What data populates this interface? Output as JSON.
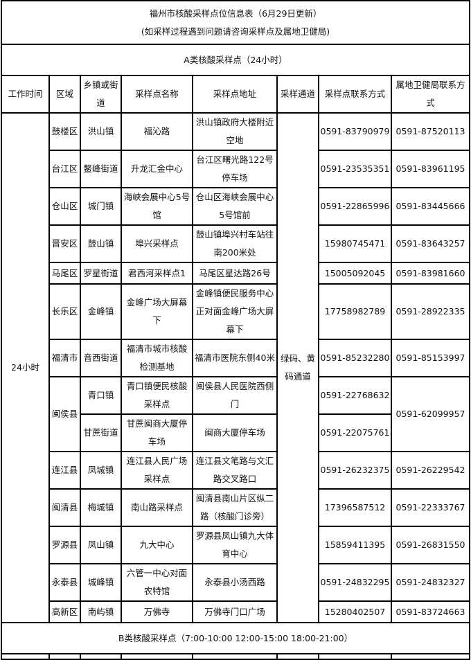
{
  "title": "福州市核酸采样点位信息表（6月29日更新）",
  "subtitle": "(如采样过程遇到问题请咨询采样点及属地卫健局)",
  "section_a": "A类核酸采样点（24小时）",
  "section_b": "B类核酸采样点（7:00-10:00 12:00-15:00 18:00-21:00）",
  "headers": [
    "工作时间",
    "区域",
    "乡镇或街道",
    "采样点名称",
    "采样点地址",
    "采样通道",
    "采样点联系方式",
    "属地卫健局联系方式"
  ],
  "work_time": "24小时",
  "channel": "绿码、黄码通道",
  "districts": [
    {
      "district": "鼓楼区",
      "bureau_phone": "0591-87520113",
      "sites": [
        {
          "town": "洪山镇",
          "name": "福沁路",
          "address": "洪山镇政府大楼附近空地",
          "phone": "0591-83790979"
        }
      ]
    },
    {
      "district": "台江区",
      "bureau_phone": "0591-83961195",
      "sites": [
        {
          "town": "鳌峰街道",
          "name": "升龙汇金中心",
          "address": "台江区曙光路122号停车场",
          "phone": "0591-23535351"
        }
      ]
    },
    {
      "district": "仓山区",
      "bureau_phone": "0591-83445666",
      "sites": [
        {
          "town": "城门镇",
          "name": "海峡会展中心5号馆",
          "address": "仓山区海峡会展中心5号馆前",
          "phone": "0591-22865996"
        }
      ]
    },
    {
      "district": "晋安区",
      "bureau_phone": "0591-83643257",
      "sites": [
        {
          "town": "鼓山镇",
          "name": "埠兴采样点",
          "address": "鼓山镇埠兴村车站往南200米处",
          "phone": "15980745471"
        }
      ]
    },
    {
      "district": "马尾区",
      "bureau_phone": "0591-83981660",
      "sites": [
        {
          "town": "罗星街道",
          "name": "君西河采样点1",
          "address": "马尾区星达路26号",
          "phone": "15005092045"
        }
      ]
    },
    {
      "district": "长乐区",
      "bureau_phone": "0591-28922335",
      "sites": [
        {
          "town": "金峰镇",
          "name": "金峰广场大屏幕下",
          "address": "金峰镇便民服务中心正对面金峰广场大屏幕下",
          "phone": "17758982789"
        }
      ]
    },
    {
      "district": "福清市",
      "bureau_phone": "0591-85153997",
      "sites": [
        {
          "town": "音西街道",
          "name": "福清市城市核酸检测基地",
          "address": "福清市医院东侧40米",
          "phone": "0591-85232280"
        }
      ]
    },
    {
      "district": "闽侯县",
      "bureau_phone": "0591-62099957",
      "sites": [
        {
          "town": "青口镇",
          "name": "青口镇便民核酸采样点",
          "address": "闽侯县人民医院西侧门",
          "phone": "0591-22768632"
        },
        {
          "town": "甘蔗街道",
          "name": "甘蔗闽商大厦停车场",
          "address": "闽商大厦停车场",
          "phone": "0591-22075761"
        }
      ]
    },
    {
      "district": "连江县",
      "bureau_phone": "0591-26229542",
      "sites": [
        {
          "town": "凤城镇",
          "name": "连江县人民广场采样点",
          "address": "连江县文笔路与文汇路交叉路口",
          "phone": "0591-26232375"
        }
      ]
    },
    {
      "district": "闽清县",
      "bureau_phone": "0591-22333767",
      "sites": [
        {
          "town": "梅城镇",
          "name": "南山路采样点",
          "address": "闽清县南山片区纵二路（核酸门诊旁）",
          "phone": "17396587512"
        }
      ]
    },
    {
      "district": "罗源县",
      "bureau_phone": "0591-26831550",
      "sites": [
        {
          "town": "凤山镇",
          "name": "九大中心",
          "address": "罗源县凤山镇九大体育中心",
          "phone": "15859411395"
        }
      ]
    },
    {
      "district": "永泰县",
      "bureau_phone": "0591-24832327",
      "sites": [
        {
          "town": "城峰镇",
          "name": "六管一中心对面农特馆",
          "address": "永泰县小汤西路",
          "phone": "0591-24832295"
        }
      ]
    },
    {
      "district": "高新区",
      "bureau_phone": "0591-83724663",
      "sites": [
        {
          "town": "南屿镇",
          "name": "万佛寺",
          "address": "万佛寺门口广场",
          "phone": "15280402507"
        }
      ]
    }
  ]
}
